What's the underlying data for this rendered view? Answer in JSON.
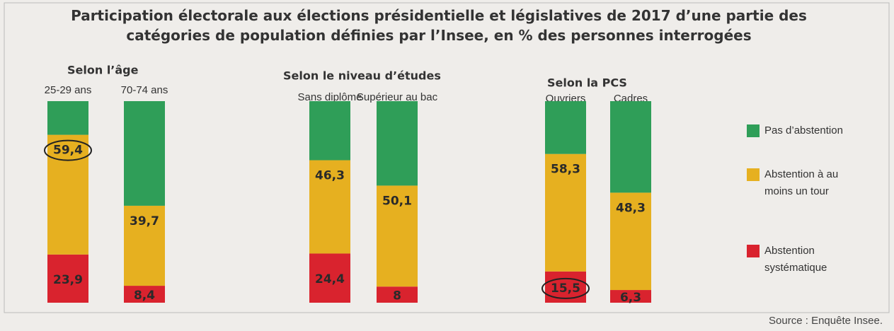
{
  "chart_data": {
    "type": "stacked_bar",
    "title": "Participation électorale aux élections présidentielle et législatives de 2017 d’une partie des catégories de population définies par l’Insee, en % des personnes interrogées",
    "groups": [
      "Selon l’âge",
      "Selon le niveau d’études",
      "Selon la PCS"
    ],
    "categories": [
      "25-29 ans",
      "70-74 ans",
      "Sans diplôme",
      "Supérieur au bac",
      "Ouvriers",
      "Cadres"
    ],
    "series": [
      {
        "name": "Abstention systématique",
        "color": "#d9232e",
        "values": [
          23.9,
          8.4,
          24.4,
          8,
          15.5,
          6.3
        ],
        "value_labels": [
          "23,9",
          "8,4",
          "24,4",
          "8",
          "15,5",
          "6,3"
        ]
      },
      {
        "name": "Abstention à au moins un tour",
        "color": "#e6b020",
        "values": [
          59.4,
          39.7,
          46.3,
          50.1,
          58.3,
          48.3
        ],
        "value_labels": [
          "59,4",
          "39,7",
          "46,3",
          "50,1",
          "58,3",
          "48,3"
        ]
      },
      {
        "name": "Pas d’abstention",
        "color": "#2f9e58",
        "values": [
          16.7,
          51.9,
          29.3,
          41.9,
          26.2,
          45.4
        ]
      }
    ],
    "source": "Source : Enquête Insee."
  }
}
